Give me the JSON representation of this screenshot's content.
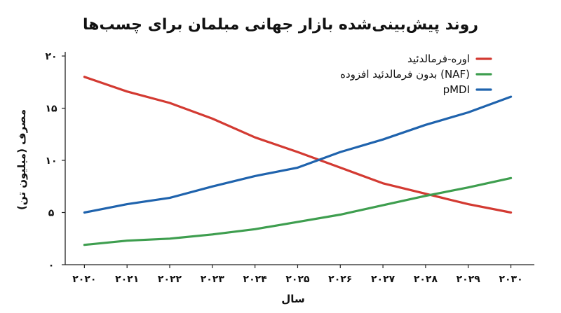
{
  "chart_data": {
    "type": "line",
    "title": "روند پیش‌بینی‌شده بازار جهانی مبلمان برای چسب‌ها",
    "xlabel": "سال",
    "ylabel": "مصرف (میلیون تن)",
    "x": [
      2020,
      2021,
      2022,
      2023,
      2024,
      2025,
      2026,
      2027,
      2028,
      2029,
      2030
    ],
    "x_tick_labels": [
      "۲۰۲۰",
      "۲۰۲۱",
      "۲۰۲۲",
      "۲۰۲۳",
      "۲۰۲۴",
      "۲۰۲۵",
      "۲۰۲۶",
      "۲۰۲۷",
      "۲۰۲۸",
      "۲۰۲۹",
      "۲۰۳۰"
    ],
    "y_ticks": [
      0,
      5,
      10,
      15,
      20
    ],
    "y_tick_labels": [
      "۰",
      "۵",
      "۱۰",
      "۱۵",
      "۲۰"
    ],
    "ylim": [
      0,
      20
    ],
    "xlim": [
      2019.55,
      2030.55
    ],
    "grid": false,
    "legend_position": "top-right",
    "series": [
      {
        "name": "اوره-فرمالدئید",
        "color": "#d33a32",
        "values": [
          18.0,
          16.6,
          15.5,
          14.0,
          12.2,
          10.8,
          9.3,
          7.8,
          6.8,
          5.8,
          5.0
        ]
      },
      {
        "name": "بدون فرمالدئید افزوده (NAF)",
        "color": "#3e9e4f",
        "values": [
          1.9,
          2.3,
          2.5,
          2.9,
          3.4,
          4.1,
          4.8,
          5.7,
          6.6,
          7.4,
          8.3
        ]
      },
      {
        "name": "pMDI",
        "color": "#1f63ad",
        "values": [
          5.0,
          5.8,
          6.4,
          7.5,
          8.5,
          9.3,
          10.8,
          12.0,
          13.4,
          14.6,
          16.1
        ]
      }
    ]
  }
}
